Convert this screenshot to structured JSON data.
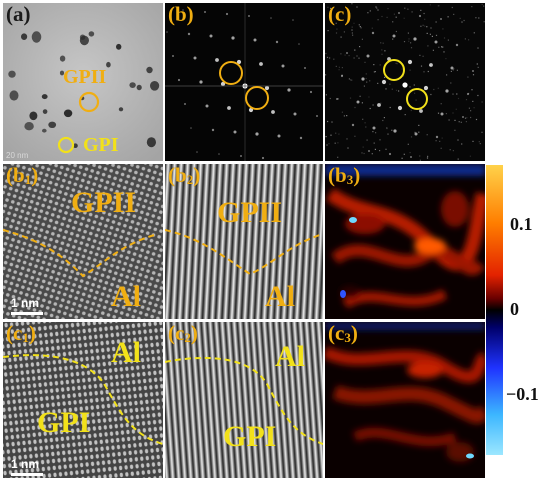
{
  "panels": {
    "a": {
      "label": "(a)",
      "particle_large": "GPII",
      "particle_small": "GPI",
      "scale_text": "20 nm"
    },
    "b": {
      "label": "(b)"
    },
    "c": {
      "label": "(c)"
    },
    "b1": {
      "label": "(b",
      "sub": "1",
      "label_end": ")",
      "region_upper": "GPII",
      "region_lower": "Al",
      "scale_text": "1 nm"
    },
    "b2": {
      "label": "(b",
      "sub": "2",
      "label_end": ")",
      "region_upper": "GPII",
      "region_lower": "Al"
    },
    "b3": {
      "label": "(b",
      "sub": "3",
      "label_end": ")"
    },
    "c1": {
      "label": "(c",
      "sub": "1",
      "label_end": ")",
      "region_upper": "Al",
      "region_lower": "GPI",
      "scale_text": "1 nm"
    },
    "c2": {
      "label": "(c",
      "sub": "2",
      "label_end": ")",
      "region_upper": "Al",
      "region_lower": "GPI"
    },
    "c3": {
      "label": "(c",
      "sub": "3",
      "label_end": ")"
    }
  },
  "colorbar": {
    "ticks": [
      {
        "value": 0.1,
        "label": "0.1"
      },
      {
        "value": 0,
        "label": "0"
      },
      {
        "value": -0.1,
        "label": "−0.1"
      }
    ],
    "range": [
      -0.17,
      0.17
    ]
  },
  "colors": {
    "orange_label": "#f0ae12",
    "yellow_label": "#f2e11a",
    "interface_orange": "#f0ae12",
    "interface_yellow": "#f2e11a"
  }
}
